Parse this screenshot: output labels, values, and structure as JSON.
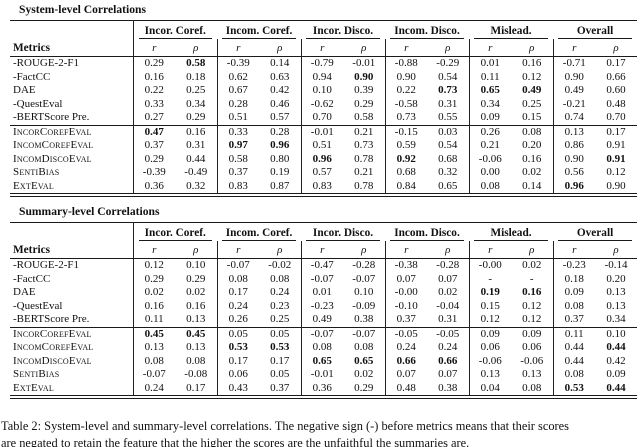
{
  "colors": {
    "background": "#ffffff",
    "text": "#111111",
    "rule": "#1a1a1a"
  },
  "sections": [
    {
      "title": "System-level Correlations",
      "header": {
        "metrics_label": "Metrics",
        "groups": [
          "Incor. Coref.",
          "Incom. Coref.",
          "Incor. Disco.",
          "Incom. Disco.",
          "Mislead.",
          "Overall"
        ],
        "subcols": [
          "r",
          "ρ"
        ]
      },
      "blocks": [
        {
          "rows": [
            {
              "name": "-ROUGE-2-F1",
              "sc": false,
              "values": [
                "0.29",
                "0.58",
                "-0.39",
                "0.14",
                "-0.79",
                "-0.01",
                "-0.88",
                "-0.29",
                "0.01",
                "0.16",
                "-0.71",
                "0.17"
              ],
              "bold": [
                1
              ]
            },
            {
              "name": "-FactCC",
              "sc": false,
              "values": [
                "0.16",
                "0.18",
                "0.62",
                "0.63",
                "0.94",
                "0.90",
                "0.90",
                "0.54",
                "0.11",
                "0.12",
                "0.90",
                "0.66"
              ],
              "bold": [
                5
              ]
            },
            {
              "name": "DAE",
              "sc": false,
              "values": [
                "0.22",
                "0.25",
                "0.67",
                "0.42",
                "0.10",
                "0.39",
                "0.22",
                "0.73",
                "0.65",
                "0.49",
                "0.49",
                "0.60"
              ],
              "bold": [
                7,
                8,
                9
              ]
            },
            {
              "name": "-QuestEval",
              "sc": false,
              "values": [
                "0.33",
                "0.34",
                "0.28",
                "0.46",
                "-0.62",
                "0.29",
                "-0.58",
                "0.31",
                "0.34",
                "0.25",
                "-0.21",
                "0.48"
              ],
              "bold": []
            },
            {
              "name": "-BERTScore Pre.",
              "sc": false,
              "values": [
                "0.27",
                "0.29",
                "0.51",
                "0.57",
                "0.70",
                "0.58",
                "0.73",
                "0.55",
                "0.09",
                "0.15",
                "0.74",
                "0.70"
              ],
              "bold": []
            }
          ]
        },
        {
          "rows": [
            {
              "name": "IncorCorefEval",
              "sc": true,
              "values": [
                "0.47",
                "0.16",
                "0.33",
                "0.28",
                "-0.01",
                "0.21",
                "-0.15",
                "0.03",
                "0.26",
                "0.08",
                "0.13",
                "0.17"
              ],
              "bold": [
                0
              ]
            },
            {
              "name": "IncomCorefEval",
              "sc": true,
              "values": [
                "0.37",
                "0.31",
                "0.97",
                "0.96",
                "0.51",
                "0.73",
                "0.59",
                "0.54",
                "0.21",
                "0.20",
                "0.86",
                "0.91"
              ],
              "bold": [
                2,
                3
              ]
            },
            {
              "name": "IncomDiscoEval",
              "sc": true,
              "values": [
                "0.29",
                "0.44",
                "0.58",
                "0.80",
                "0.96",
                "0.78",
                "0.92",
                "0.68",
                "-0.06",
                "0.16",
                "0.90",
                "0.91"
              ],
              "bold": [
                4,
                6,
                11
              ]
            },
            {
              "name": "SentiBias",
              "sc": true,
              "values": [
                "-0.39",
                "-0.49",
                "0.37",
                "0.19",
                "0.57",
                "0.21",
                "0.68",
                "0.32",
                "0.00",
                "0.02",
                "0.56",
                "0.12"
              ],
              "bold": []
            },
            {
              "name": "ExtEval",
              "sc": true,
              "values": [
                "0.36",
                "0.32",
                "0.83",
                "0.87",
                "0.83",
                "0.78",
                "0.84",
                "0.65",
                "0.08",
                "0.14",
                "0.96",
                "0.90"
              ],
              "bold": [
                10
              ]
            }
          ]
        }
      ]
    },
    {
      "title": "Summary-level Correlations",
      "header": {
        "metrics_label": "Metrics",
        "groups": [
          "Incor. Coref.",
          "Incom. Coref.",
          "Incor. Disco.",
          "Incom. Disco.",
          "Mislead.",
          "Overall"
        ],
        "subcols": [
          "r",
          "ρ"
        ]
      },
      "blocks": [
        {
          "rows": [
            {
              "name": "-ROUGE-2-F1",
              "sc": false,
              "values": [
                "0.12",
                "0.10",
                "-0.07",
                "-0.02",
                "-0.47",
                "-0.28",
                "-0.38",
                "-0.28",
                "-0.00",
                "0.02",
                "-0.23",
                "-0.14"
              ],
              "bold": []
            },
            {
              "name": "-FactCC",
              "sc": false,
              "values": [
                "0.29",
                "0.29",
                "0.08",
                "0.08",
                "-0.07",
                "-0.07",
                "0.07",
                "0.07",
                "-",
                "-",
                "0.18",
                "0.20"
              ],
              "bold": []
            },
            {
              "name": "DAE",
              "sc": false,
              "values": [
                "0.02",
                "0.02",
                "0.17",
                "0.24",
                "0.01",
                "0.10",
                "-0.00",
                "0.02",
                "0.19",
                "0.16",
                "0.09",
                "0.13"
              ],
              "bold": [
                8,
                9
              ]
            },
            {
              "name": "-QuestEval",
              "sc": false,
              "values": [
                "0.16",
                "0.16",
                "0.24",
                "0.23",
                "-0.23",
                "-0.09",
                "-0.10",
                "-0.04",
                "0.15",
                "0.12",
                "0.08",
                "0.13"
              ],
              "bold": []
            },
            {
              "name": "-BERTScore Pre.",
              "sc": false,
              "values": [
                "0.11",
                "0.13",
                "0.26",
                "0.25",
                "0.49",
                "0.38",
                "0.37",
                "0.31",
                "0.12",
                "0.12",
                "0.37",
                "0.34"
              ],
              "bold": []
            }
          ]
        },
        {
          "rows": [
            {
              "name": "IncorCorefEval",
              "sc": true,
              "values": [
                "0.45",
                "0.45",
                "0.05",
                "0.05",
                "-0.07",
                "-0.07",
                "-0.05",
                "-0.05",
                "0.09",
                "0.09",
                "0.11",
                "0.10"
              ],
              "bold": [
                0,
                1
              ]
            },
            {
              "name": "IncomCorefEval",
              "sc": true,
              "values": [
                "0.13",
                "0.13",
                "0.53",
                "0.53",
                "0.08",
                "0.08",
                "0.24",
                "0.24",
                "0.06",
                "0.06",
                "0.44",
                "0.44"
              ],
              "bold": [
                2,
                3,
                11
              ]
            },
            {
              "name": "IncomDiscoEval",
              "sc": true,
              "values": [
                "0.08",
                "0.08",
                "0.17",
                "0.17",
                "0.65",
                "0.65",
                "0.66",
                "0.66",
                "-0.06",
                "-0.06",
                "0.44",
                "0.42"
              ],
              "bold": [
                4,
                5,
                6,
                7
              ]
            },
            {
              "name": "SentiBias",
              "sc": true,
              "values": [
                "-0.07",
                "-0.08",
                "0.06",
                "0.05",
                "-0.01",
                "0.02",
                "0.07",
                "0.07",
                "0.13",
                "0.13",
                "0.08",
                "0.09"
              ],
              "bold": []
            },
            {
              "name": "ExtEval",
              "sc": true,
              "values": [
                "0.24",
                "0.17",
                "0.43",
                "0.37",
                "0.36",
                "0.29",
                "0.48",
                "0.38",
                "0.04",
                "0.08",
                "0.53",
                "0.44"
              ],
              "bold": [
                10,
                11
              ]
            }
          ]
        }
      ]
    }
  ],
  "caption": {
    "line1": "Table 2: System-level and summary-level correlations. The negative sign (-) before metrics means that their scores",
    "line2": "are negated to retain the feature that the higher the scores are the unfaithful the summaries are."
  }
}
